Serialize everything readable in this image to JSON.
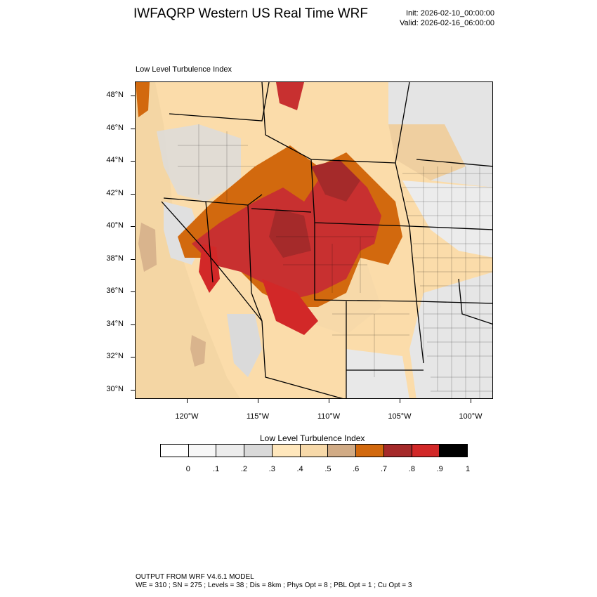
{
  "header": {
    "title": "IWFAQRP Western US Real Time WRF",
    "init": "Init: 2026-02-10_00:00:00",
    "valid": "Valid: 2026-02-16_06:00:00"
  },
  "field_label": "Low Level Turbulence Index",
  "map": {
    "lat_labels": [
      "48°N",
      "46°N",
      "44°N",
      "42°N",
      "40°N",
      "38°N",
      "36°N",
      "34°N",
      "32°N",
      "30°N"
    ],
    "lon_labels": [
      "120°W",
      "115°W",
      "110°W",
      "105°W",
      "100°W"
    ]
  },
  "colorbar": {
    "title": "Low Level Turbulence Index",
    "labels": [
      "0",
      ".1",
      ".2",
      ".3",
      ".4",
      ".5",
      ".6",
      ".7",
      ".8",
      ".9",
      "1"
    ],
    "colors": [
      "#ffffff",
      "#f7f7f7",
      "#ececec",
      "#d9d9d9",
      "#ffe7bc",
      "#f7d9a9",
      "#d1ab85",
      "#d2690e",
      "#a52a2a",
      "#d22828",
      "#000000"
    ]
  },
  "footer": {
    "line1": "OUTPUT FROM WRF V4.6.1 MODEL",
    "line2": "WE = 310 ; SN = 275 ; Levels = 38 ; Dis = 8km ; Phys Opt = 8 ; PBL Opt = 1 ; Cu Opt = 3"
  }
}
